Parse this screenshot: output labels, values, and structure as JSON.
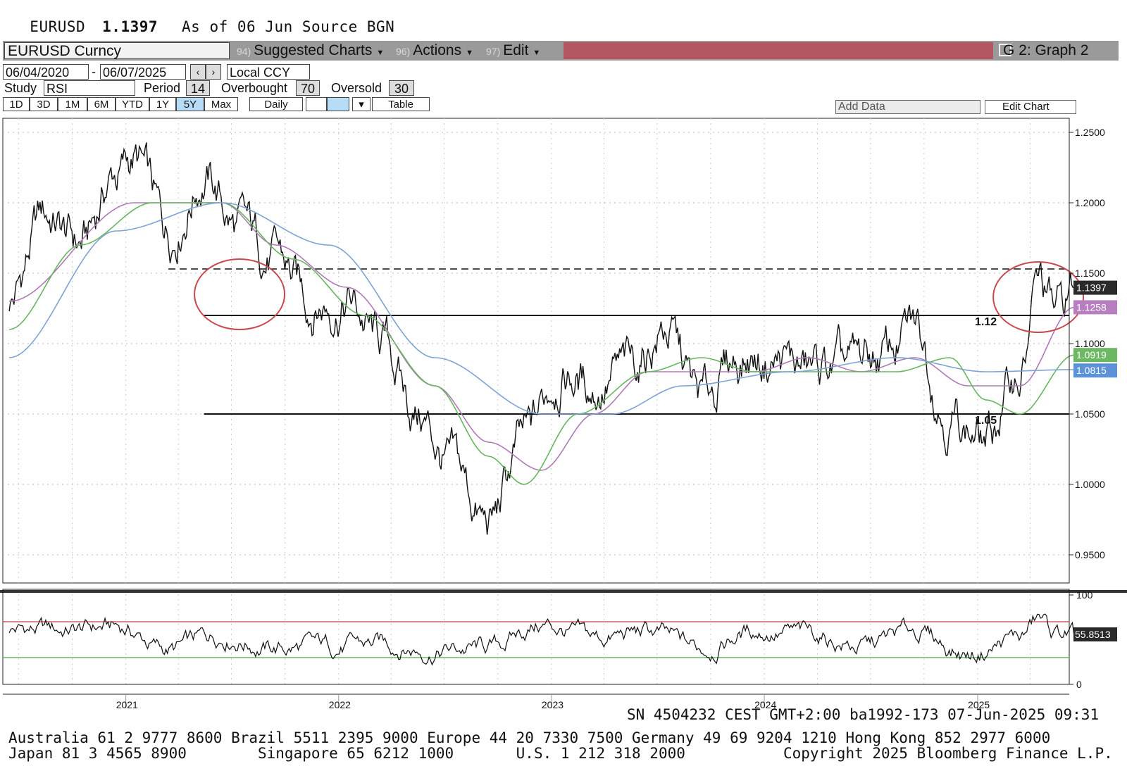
{
  "header": {
    "symbol": "EURUSD",
    "price": "1.1397",
    "as_of": "As of 06 Jun",
    "source": "Source BGN"
  },
  "toolbar": {
    "ticker": "EURUSD Curncy",
    "suggested": {
      "num": "94)",
      "label": "Suggested Charts"
    },
    "actions": {
      "num": "96)",
      "label": "Actions"
    },
    "edit": {
      "num": "97)",
      "label": "Edit"
    },
    "graph": "G 2: Graph 2",
    "colors": {
      "bar": "#9a9a9a",
      "accent": "#b25660"
    }
  },
  "controls": {
    "start_date": "06/04/2020",
    "end_date": "06/07/2025",
    "currency": "Local CCY",
    "study_label": "Study",
    "study": "RSI",
    "period_label": "Period",
    "period": "14",
    "overbought_label": "Overbought",
    "overbought": "70",
    "oversold_label": "Oversold",
    "oversold": "30",
    "ranges": [
      "1D",
      "3D",
      "1M",
      "6M",
      "YTD",
      "1Y",
      "5Y",
      "Max"
    ],
    "active_range": "5Y",
    "frequency": "Daily",
    "table": "Table",
    "add_data": "Add Data",
    "edit_chart": "Edit Chart"
  },
  "chart_data": {
    "type": "line",
    "x_range": [
      "2020-06-04",
      "2025-06-07"
    ],
    "ylim": [
      0.93,
      1.26
    ],
    "y_ticks": [
      "1.2500",
      "1.2000",
      "1.1500",
      "1.1000",
      "1.0500",
      "1.0000",
      "0.9500"
    ],
    "x_ticks": [
      "2021",
      "2022",
      "2023",
      "2024",
      "2025"
    ],
    "series": [
      {
        "x": [
          "2020-06",
          "2020-08",
          "2020-10",
          "2020-12",
          "2021-01",
          "2021-03",
          "2021-05",
          "2021-07",
          "2021-09",
          "2021-11",
          "2022-01",
          "2022-03",
          "2022-05",
          "2022-07",
          "2022-09",
          "2022-11",
          "2023-01",
          "2023-03",
          "2023-05",
          "2023-07",
          "2023-09",
          "2023-11",
          "2024-01",
          "2024-03",
          "2024-05",
          "2024-07",
          "2024-09",
          "2024-11",
          "2025-01",
          "2025-03",
          "2025-04",
          "2025-05",
          "2025-06"
        ],
        "values": [
          1.13,
          1.19,
          1.17,
          1.22,
          1.23,
          1.18,
          1.22,
          1.18,
          1.16,
          1.13,
          1.13,
          1.1,
          1.05,
          1.01,
          0.97,
          1.03,
          1.08,
          1.07,
          1.08,
          1.11,
          1.06,
          1.09,
          1.09,
          1.08,
          1.08,
          1.09,
          1.11,
          1.05,
          1.03,
          1.08,
          1.14,
          1.12,
          1.1397
        ],
        "color": "#111111"
      },
      {
        "x": [
          "2020-06",
          "2021-01",
          "2021-06",
          "2021-09",
          "2022-01",
          "2022-06",
          "2022-09",
          "2022-12",
          "2023-03",
          "2023-06",
          "2023-09",
          "2023-12",
          "2024-03",
          "2024-06",
          "2024-09",
          "2024-12",
          "2025-03",
          "2025-06"
        ],
        "values": [
          1.13,
          1.2,
          1.2,
          1.17,
          1.14,
          1.07,
          1.03,
          1.01,
          1.05,
          1.08,
          1.08,
          1.08,
          1.09,
          1.08,
          1.09,
          1.07,
          1.07,
          1.1258
        ],
        "color": "#b07ab8"
      },
      {
        "x": [
          "2020-06",
          "2020-10",
          "2021-02",
          "2021-06",
          "2021-10",
          "2022-02",
          "2022-06",
          "2022-09",
          "2022-11",
          "2023-02",
          "2023-06",
          "2023-09",
          "2023-12",
          "2024-04",
          "2024-08",
          "2024-11",
          "2025-01",
          "2025-03",
          "2025-06"
        ],
        "values": [
          1.11,
          1.17,
          1.2,
          1.2,
          1.16,
          1.12,
          1.07,
          1.02,
          1.0,
          1.05,
          1.08,
          1.09,
          1.08,
          1.08,
          1.08,
          1.09,
          1.06,
          1.05,
          1.0919
        ],
        "color": "#66b75e"
      },
      {
        "x": [
          "2020-06",
          "2020-12",
          "2021-06",
          "2021-12",
          "2022-06",
          "2022-12",
          "2023-04",
          "2023-08",
          "2024-02",
          "2024-08",
          "2025-01",
          "2025-06"
        ],
        "values": [
          1.09,
          1.18,
          1.2,
          1.17,
          1.09,
          1.05,
          1.05,
          1.07,
          1.08,
          1.09,
          1.08,
          1.0815
        ],
        "color": "#7ea3d4"
      }
    ],
    "last_value_tags": [
      {
        "value": "1.1397",
        "y": 1.1397,
        "color": "#2a2a2a"
      },
      {
        "value": "1.1258",
        "y": 1.1258,
        "color": "#b77fc0"
      },
      {
        "value": "1.0919",
        "y": 1.0919,
        "color": "#6db862"
      },
      {
        "value": "1.0815",
        "y": 1.0815,
        "color": "#5b93d6"
      }
    ],
    "levels": [
      {
        "label": "1.12",
        "y": 1.12,
        "style": "solid",
        "from": "2021-05"
      },
      {
        "label": "1.05",
        "y": 1.05,
        "style": "solid",
        "from": "2021-05"
      },
      {
        "label": "",
        "y": 1.153,
        "style": "dashed",
        "from": "2021-03"
      }
    ],
    "highlights": [
      {
        "x": "2021-07",
        "y": 1.135,
        "color": "#c8494f"
      },
      {
        "x": "2025-04",
        "y": 1.133,
        "color": "#c8494f"
      }
    ],
    "rsi": {
      "ylim": [
        0,
        100
      ],
      "y_ticks": [
        "100",
        "0"
      ],
      "overbought": 70,
      "oversold": 30,
      "last": "55.8513",
      "x": [
        "2020-06",
        "2020-09",
        "2020-12",
        "2021-03",
        "2021-06",
        "2021-09",
        "2021-12",
        "2022-03",
        "2022-06",
        "2022-09",
        "2022-12",
        "2023-03",
        "2023-06",
        "2023-09",
        "2023-12",
        "2024-03",
        "2024-06",
        "2024-09",
        "2024-12",
        "2025-03",
        "2025-04",
        "2025-05",
        "2025-06"
      ],
      "values": [
        62,
        60,
        64,
        38,
        56,
        40,
        42,
        45,
        38,
        40,
        66,
        50,
        58,
        40,
        60,
        55,
        42,
        60,
        34,
        52,
        72,
        55,
        55.8513
      ]
    }
  },
  "footer": {
    "line1": "SN 4504232 CEST GMT+2:00 ba1992-173 07-Jun-2025 09:31",
    "line2": "Australia 61 2 9777 8600 Brazil 5511 2395 9000 Europe 44 20 7330 7500 Germany 49 69 9204 1210 Hong Kong 852 2977 6000",
    "line3": "Japan 81 3 4565 8900        Singapore 65 6212 1000       U.S. 1 212 318 2000           Copyright 2025 Bloomberg Finance L.P."
  }
}
